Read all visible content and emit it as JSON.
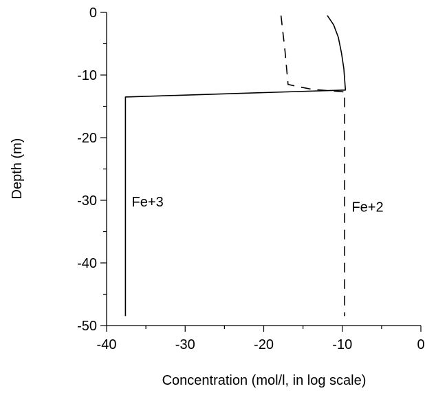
{
  "chart_data": {
    "type": "line",
    "xlabel": "Concentration (mol/l, in log scale)",
    "ylabel": "Depth (m)",
    "xlim": [
      -40,
      0
    ],
    "ylim": [
      -50,
      0
    ],
    "xticks": [
      -40,
      -30,
      -20,
      -10,
      0
    ],
    "yticks": [
      0,
      -10,
      -20,
      -30,
      -40,
      -50
    ],
    "x_tick_labels": [
      "-40",
      "-30",
      "-20",
      "-10",
      "0"
    ],
    "y_tick_labels": [
      "0",
      "-10",
      "-20",
      "-30",
      "-40",
      "-50"
    ],
    "grid": false,
    "legend": "none",
    "series": [
      {
        "name": "Fe+3",
        "line_style": "solid",
        "color": "#000000",
        "points": [
          [
            -11.9,
            -0.5
          ],
          [
            -11.1,
            -2.0
          ],
          [
            -10.5,
            -4.0
          ],
          [
            -10.1,
            -6.5
          ],
          [
            -9.8,
            -9.0
          ],
          [
            -9.6,
            -12.4
          ],
          [
            -37.6,
            -13.5
          ],
          [
            -37.6,
            -48.5
          ]
        ]
      },
      {
        "name": "Fe+2",
        "line_style": "dashed",
        "color": "#000000",
        "points": [
          [
            -17.8,
            -0.5
          ],
          [
            -17.3,
            -6.0
          ],
          [
            -16.9,
            -11.5
          ],
          [
            -15.8,
            -11.8
          ],
          [
            -13.8,
            -12.3
          ],
          [
            -9.7,
            -12.7
          ],
          [
            -9.7,
            -48.5
          ]
        ]
      }
    ],
    "annotations": [
      {
        "text": "Fe+3",
        "x": -36.8,
        "y": -31.0,
        "series": "Fe+3"
      },
      {
        "text": "Fe+2",
        "x": -8.8,
        "y": -31.8,
        "series": "Fe+2"
      }
    ]
  }
}
